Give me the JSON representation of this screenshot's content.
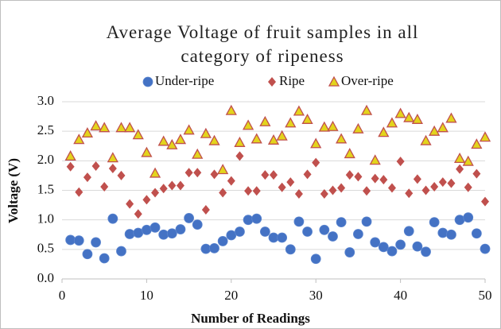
{
  "chart_data": {
    "type": "scatter",
    "title": "Average Voltage of fruit samples in all category of ripeness",
    "xlabel": "Number of Readings",
    "ylabel": "Voltage (V)",
    "x": [
      1,
      2,
      3,
      4,
      5,
      6,
      7,
      8,
      9,
      10,
      11,
      12,
      13,
      14,
      15,
      16,
      17,
      18,
      19,
      20,
      21,
      22,
      23,
      24,
      25,
      26,
      27,
      28,
      29,
      30,
      31,
      32,
      33,
      34,
      35,
      36,
      37,
      38,
      39,
      40,
      41,
      42,
      43,
      44,
      45,
      46,
      47,
      48,
      49,
      50
    ],
    "series": [
      {
        "name": "Under-ripe",
        "color": "#4472c4",
        "marker": "circle",
        "values": [
          0.66,
          0.65,
          0.42,
          0.62,
          0.35,
          1.02,
          0.47,
          0.76,
          0.78,
          0.83,
          0.87,
          0.75,
          0.77,
          0.84,
          1.03,
          0.92,
          0.51,
          0.52,
          0.64,
          0.74,
          0.8,
          1.0,
          1.02,
          0.8,
          0.7,
          0.7,
          0.5,
          0.97,
          0.8,
          0.34,
          0.83,
          0.72,
          0.96,
          0.45,
          0.76,
          0.97,
          0.62,
          0.54,
          0.47,
          0.58,
          0.81,
          0.55,
          0.46,
          0.96,
          0.78,
          0.75,
          1.0,
          1.04,
          0.77,
          0.51
        ]
      },
      {
        "name": "Ripe",
        "color": "#c0504d",
        "marker": "diamond",
        "values": [
          1.9,
          1.47,
          1.72,
          1.91,
          1.56,
          1.87,
          1.75,
          1.27,
          1.1,
          1.34,
          1.46,
          1.53,
          1.58,
          1.58,
          1.8,
          1.8,
          1.17,
          1.77,
          1.46,
          1.66,
          2.08,
          1.49,
          1.49,
          1.76,
          1.76,
          1.55,
          1.64,
          1.44,
          1.77,
          1.97,
          1.44,
          1.5,
          1.54,
          1.76,
          1.73,
          1.49,
          1.7,
          1.68,
          1.54,
          1.99,
          1.45,
          1.69,
          1.5,
          1.56,
          1.64,
          1.62,
          1.86,
          1.55,
          1.78,
          1.31
        ]
      },
      {
        "name": "Over-ripe",
        "color": "#e3d41c",
        "edgecolor": "#c0504d",
        "marker": "triangle",
        "values": [
          2.08,
          2.36,
          2.47,
          2.59,
          2.56,
          2.05,
          2.56,
          2.56,
          2.44,
          2.14,
          1.79,
          2.33,
          2.27,
          2.36,
          2.52,
          2.11,
          2.46,
          2.34,
          1.85,
          2.85,
          2.31,
          2.6,
          2.37,
          2.66,
          2.35,
          2.42,
          2.64,
          2.84,
          2.7,
          2.29,
          2.57,
          2.58,
          2.37,
          2.12,
          2.54,
          2.85,
          2.01,
          2.48,
          2.64,
          2.8,
          2.73,
          2.7,
          2.34,
          2.5,
          2.56,
          2.72,
          2.04,
          1.99,
          2.28,
          2.4
        ]
      }
    ],
    "xlim": [
      0,
      50
    ],
    "xticks": [
      0,
      10,
      20,
      30,
      40,
      50
    ],
    "ylim": [
      0,
      3
    ],
    "yticks": [
      {
        "value": 0,
        "label": "0.0"
      },
      {
        "value": 0.5,
        "label": "0.5"
      },
      {
        "value": 1,
        "label": "1.0"
      },
      {
        "value": 1.5,
        "label": "1.5"
      },
      {
        "value": 2,
        "label": "2.0"
      },
      {
        "value": 2.5,
        "label": "2.5"
      },
      {
        "value": 3,
        "label": "3.0"
      }
    ],
    "grid": true,
    "legend": "top"
  }
}
